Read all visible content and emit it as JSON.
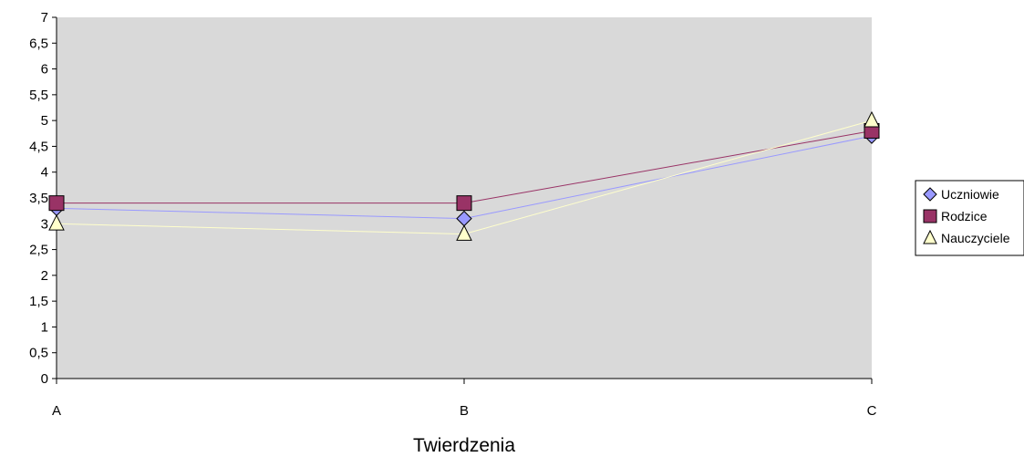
{
  "chart_data": {
    "type": "line",
    "categories": [
      "A",
      "B",
      "C"
    ],
    "series": [
      {
        "name": "Uczniowie",
        "values": [
          3.3,
          3.1,
          4.7
        ],
        "color": "#9999ff",
        "marker": "diamond"
      },
      {
        "name": "Rodzice",
        "values": [
          3.4,
          3.4,
          4.8
        ],
        "color": "#993366",
        "marker": "square"
      },
      {
        "name": "Nauczyciele",
        "values": [
          3.0,
          2.8,
          5.0
        ],
        "color": "#ffffcc",
        "marker": "triangle"
      }
    ],
    "xlabel": "Twierdzenia",
    "ylabel": "",
    "ylim": [
      0,
      7
    ],
    "yticks": [
      "0",
      "0,5",
      "1",
      "1,5",
      "2",
      "2,5",
      "3",
      "3,5",
      "4",
      "4,5",
      "5",
      "5,5",
      "6",
      "6,5",
      "7"
    ],
    "plot_background": "#d9d9d9",
    "grid": false,
    "legend_position": "right"
  }
}
